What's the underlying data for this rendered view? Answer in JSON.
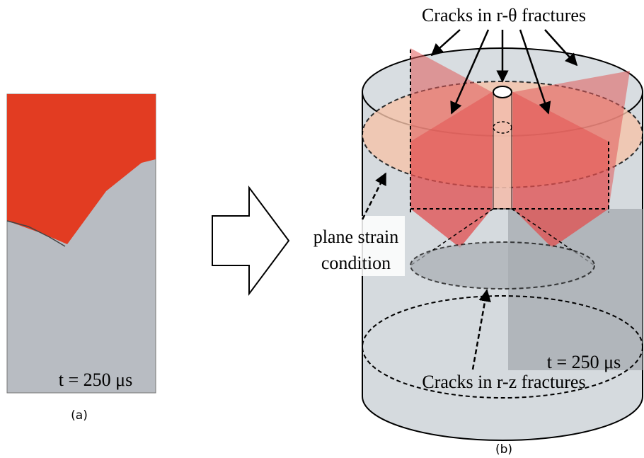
{
  "panels": [
    {
      "label": "(a)",
      "time": "t = 250 μs"
    },
    {
      "label": "(b)",
      "time": "t = 250 μs",
      "annotations": {
        "top": "Cracks in r-θ fractures",
        "plane_strain": [
          "plane strain",
          "condition"
        ],
        "bottom": "Cracks in r-z fractures"
      }
    }
  ]
}
